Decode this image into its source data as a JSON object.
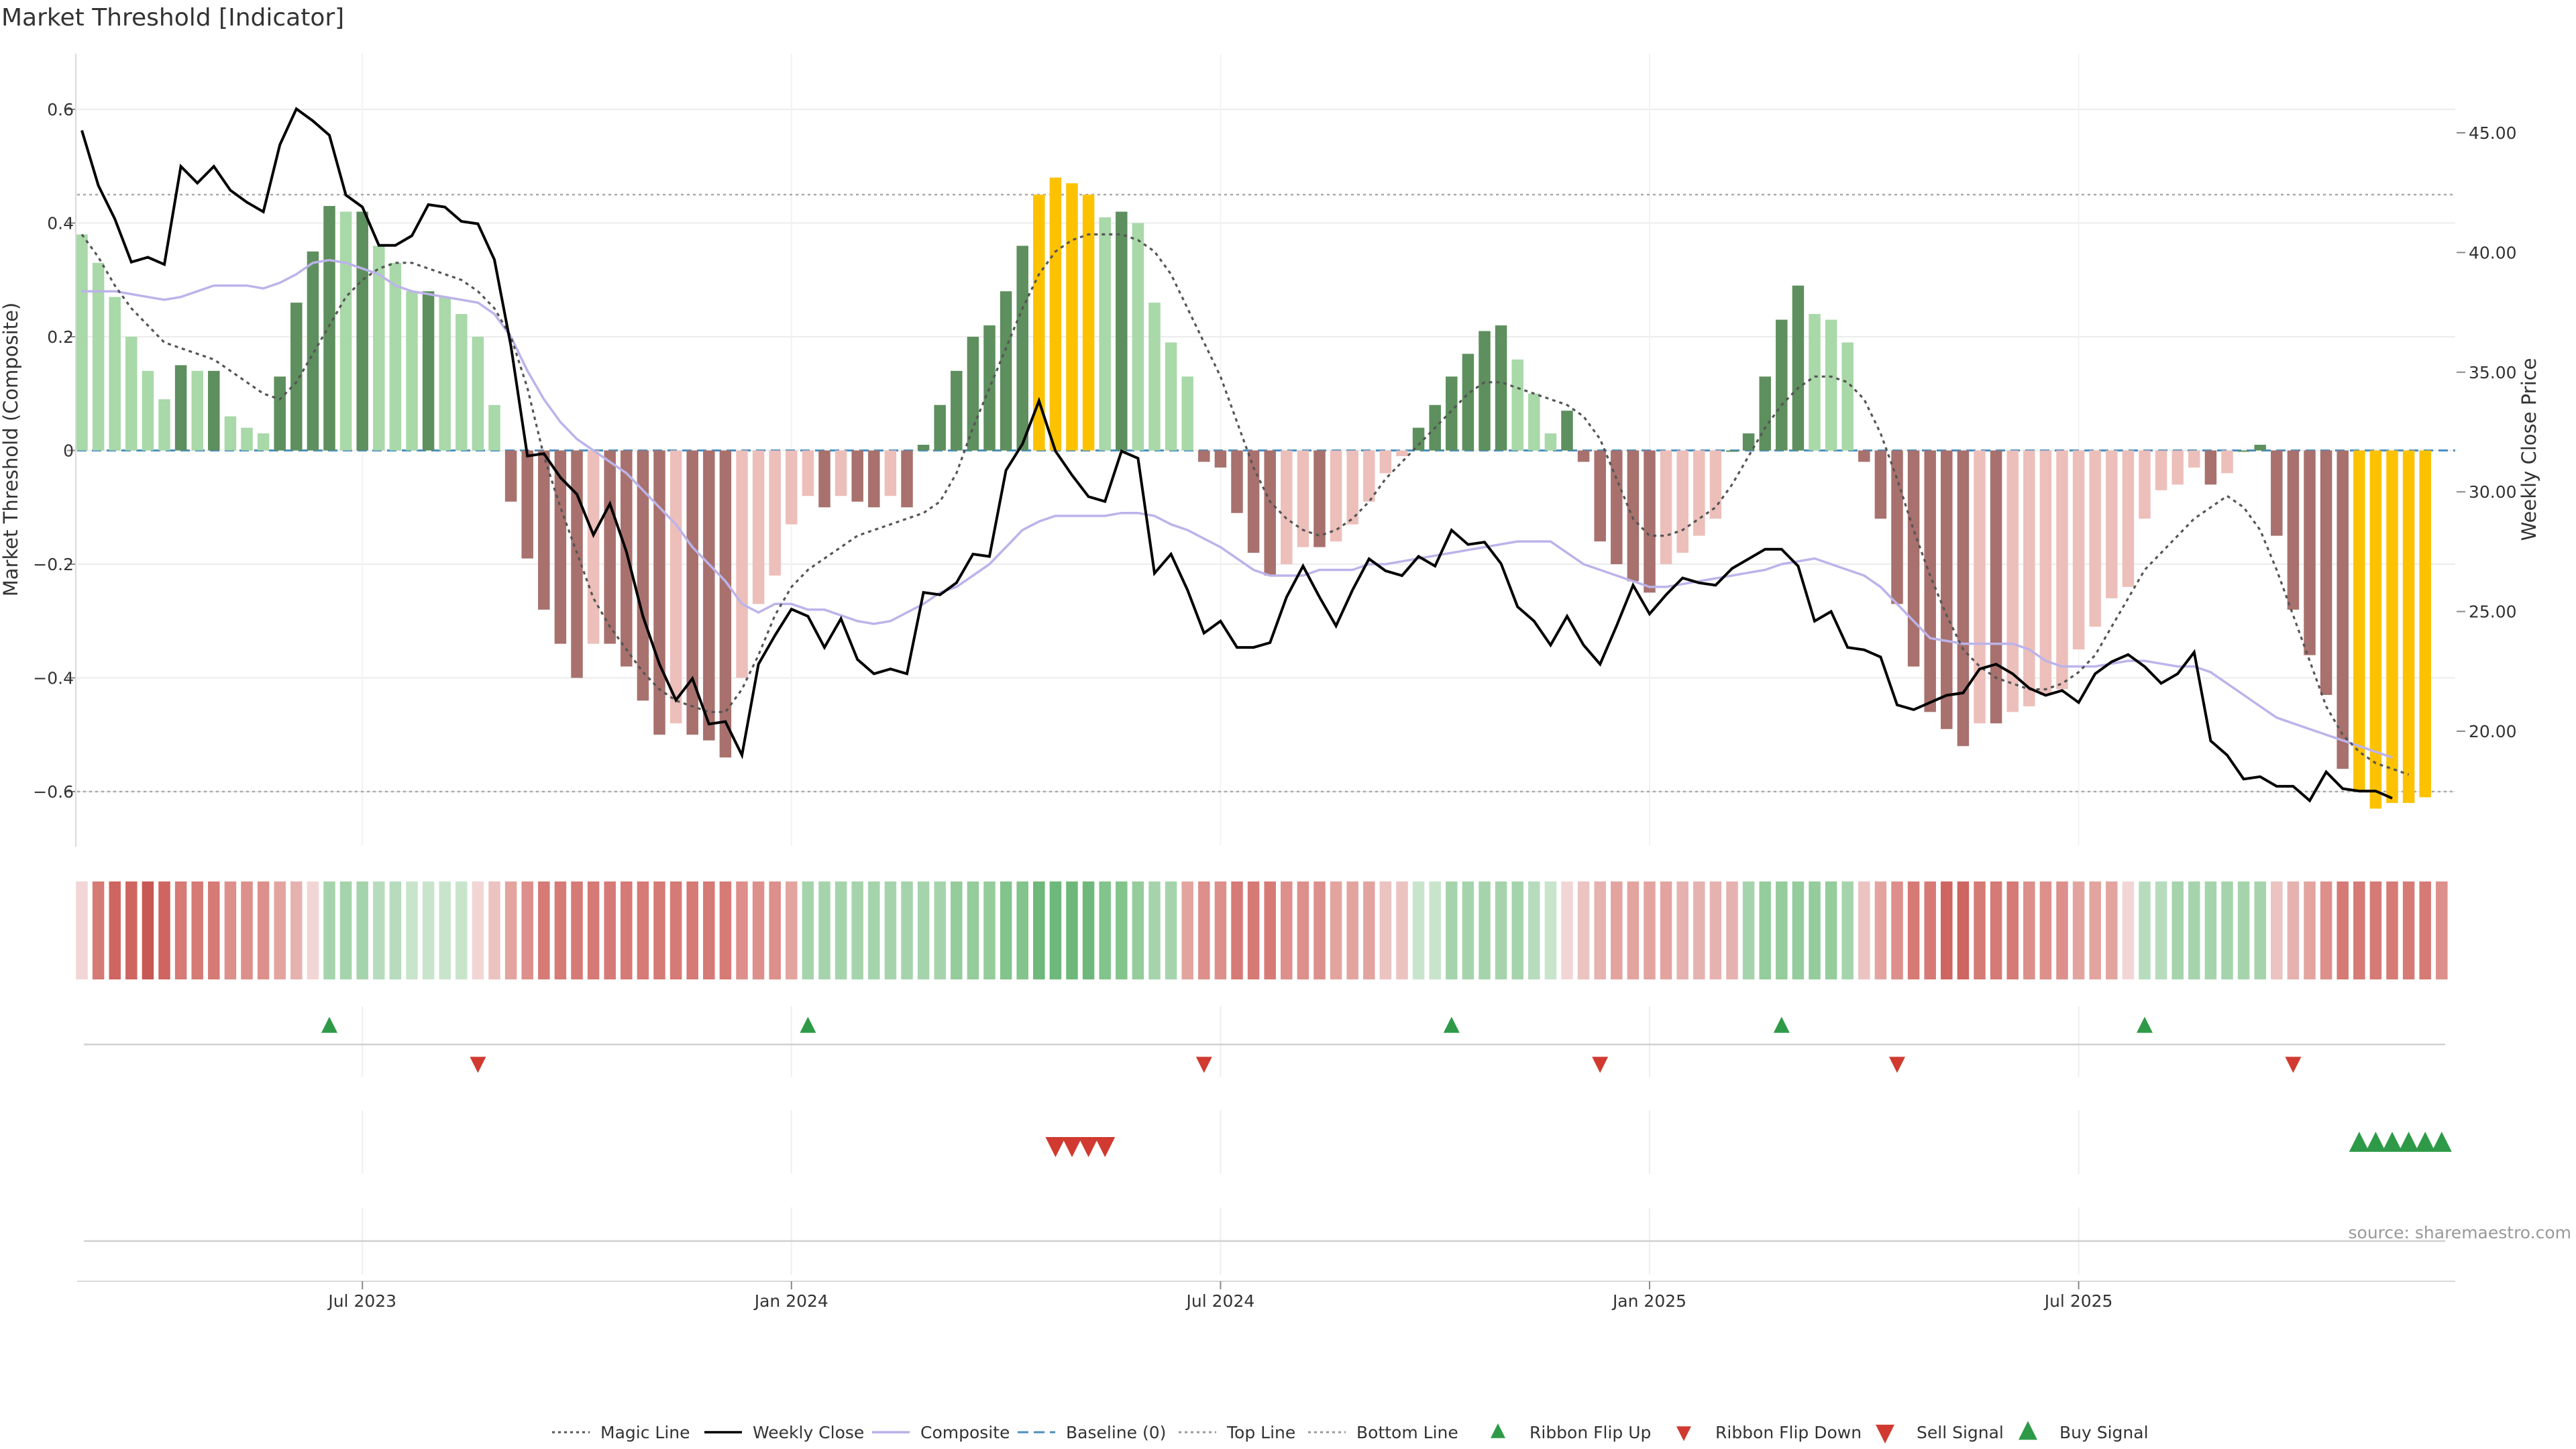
{
  "chart_data": {
    "type": "bar",
    "title": "Market Threshold [Indicator]",
    "source": "source: sharemaestro.com",
    "x_tick_labels": [
      "Jul 2023",
      "Jan 2024",
      "Jul 2024",
      "Jan 2025",
      "Jul 2025"
    ],
    "x_tick_weeks": [
      17,
      43,
      69,
      95,
      121
    ],
    "left_axis": {
      "label": "Market Threshold (Composite)",
      "ylim": [
        -0.7,
        0.7
      ],
      "ticks": [
        0.6,
        0.4,
        0.2,
        0,
        -0.2,
        -0.4,
        -0.6
      ],
      "tick_labels": [
        "0.6",
        "0.4",
        "0.2",
        "0",
        "−0.2",
        "−0.4",
        "−0.6"
      ]
    },
    "right_axis": {
      "label": "Weekly Close Price",
      "ylim": [
        13.9,
        48.2
      ],
      "ticks": [
        45,
        40,
        35,
        30,
        25,
        20
      ],
      "tick_labels": [
        "45.00",
        "40.00",
        "35.00",
        "30.00",
        "25.00",
        "20.00"
      ]
    },
    "top_line": 0.45,
    "bottom_line": -0.6,
    "bar_colors": {
      "strong_pos": "#5e8f5e",
      "weak_pos": "#a9d8a9",
      "strong_neg": "#a8716d",
      "weak_neg": "#edbfba",
      "extreme": "#fcc200"
    },
    "series": [
      {
        "name": "Composite Bars",
        "values": [
          0.38,
          0.33,
          0.27,
          0.2,
          0.14,
          0.09,
          0.15,
          0.14,
          0.14,
          0.06,
          0.04,
          0.03,
          0.13,
          0.26,
          0.35,
          0.43,
          0.42,
          0.42,
          0.36,
          0.33,
          0.28,
          0.28,
          0.27,
          0.24,
          0.2,
          0.08,
          -0.09,
          -0.19,
          -0.28,
          -0.34,
          -0.4,
          -0.34,
          -0.34,
          -0.38,
          -0.44,
          -0.5,
          -0.48,
          -0.5,
          -0.51,
          -0.54,
          -0.4,
          -0.27,
          -0.22,
          -0.13,
          -0.08,
          -0.1,
          -0.08,
          -0.09,
          -0.1,
          -0.08,
          -0.1,
          0.01,
          0.08,
          0.14,
          0.2,
          0.22,
          0.28,
          0.36,
          0.45,
          0.48,
          0.47,
          0.45,
          0.41,
          0.42,
          0.4,
          0.26,
          0.19,
          0.13,
          -0.02,
          -0.03,
          -0.11,
          -0.18,
          -0.22,
          -0.2,
          -0.17,
          -0.17,
          -0.16,
          -0.13,
          -0.09,
          -0.04,
          -0.01,
          0.04,
          0.08,
          0.13,
          0.17,
          0.21,
          0.22,
          0.16,
          0.1,
          0.03,
          0.07,
          -0.02,
          -0.16,
          -0.2,
          -0.23,
          -0.25,
          -0.2,
          -0.18,
          -0.15,
          -0.12,
          0.0,
          0.03,
          0.13,
          0.23,
          0.29,
          0.24,
          0.23,
          0.19,
          -0.02,
          -0.12,
          -0.27,
          -0.38,
          -0.46,
          -0.49,
          -0.52,
          -0.48,
          -0.48,
          -0.46,
          -0.45,
          -0.43,
          -0.42,
          -0.35,
          -0.31,
          -0.26,
          -0.24,
          -0.12,
          -0.07,
          -0.06,
          -0.03,
          -0.06,
          -0.04,
          0.0,
          0.01,
          -0.15,
          -0.28,
          -0.36,
          -0.43,
          -0.56,
          -0.6,
          -0.63,
          -0.62,
          -0.62,
          -0.61
        ]
      },
      {
        "name": "Weekly Close",
        "values": [
          45.1,
          42.8,
          41.4,
          39.6,
          39.8,
          39.5,
          43.6,
          42.9,
          43.6,
          42.6,
          42.1,
          41.7,
          44.5,
          46.0,
          45.5,
          44.9,
          42.4,
          41.9,
          40.3,
          40.3,
          40.7,
          42.0,
          41.9,
          41.3,
          41.2,
          39.7,
          36.1,
          31.5,
          31.6,
          30.6,
          29.9,
          28.2,
          29.5,
          27.5,
          24.8,
          22.8,
          21.3,
          22.2,
          20.3,
          20.4,
          19.0,
          22.8,
          24.0,
          25.1,
          24.8,
          23.5,
          24.7,
          23.0,
          22.4,
          22.6,
          22.4,
          25.8,
          25.7,
          26.2,
          27.4,
          27.3,
          30.9,
          32.0,
          33.8,
          31.7,
          30.7,
          29.8,
          29.6,
          31.7,
          31.4,
          26.6,
          27.4,
          25.9,
          24.1,
          24.6,
          23.5,
          23.5,
          23.7,
          25.6,
          26.9,
          25.6,
          24.4,
          25.9,
          27.2,
          26.7,
          26.5,
          27.3,
          26.9,
          28.4,
          27.8,
          27.9,
          27.0,
          25.2,
          24.6,
          23.6,
          24.8,
          23.6,
          22.8,
          24.4,
          26.1,
          24.9,
          25.7,
          26.4,
          26.2,
          26.1,
          26.8,
          27.2,
          27.6,
          27.6,
          26.9,
          24.6,
          25.0,
          23.5,
          23.4,
          23.1,
          21.1,
          20.9,
          21.2,
          21.5,
          21.6,
          22.6,
          22.8,
          22.4,
          21.8,
          21.5,
          21.7,
          21.2,
          22.4,
          22.9,
          23.2,
          22.7,
          22.0,
          22.4,
          23.3,
          19.6,
          19.0,
          18.0,
          18.1,
          17.7,
          17.7,
          17.1,
          18.3,
          17.6,
          17.5,
          17.5,
          17.2
        ]
      },
      {
        "name": "Composite",
        "values": [
          0.28,
          0.28,
          0.28,
          0.275,
          0.27,
          0.265,
          0.27,
          0.28,
          0.29,
          0.29,
          0.29,
          0.285,
          0.295,
          0.31,
          0.33,
          0.335,
          0.33,
          0.32,
          0.31,
          0.29,
          0.28,
          0.275,
          0.27,
          0.265,
          0.26,
          0.24,
          0.2,
          0.14,
          0.09,
          0.05,
          0.02,
          0.0,
          -0.02,
          -0.04,
          -0.07,
          -0.1,
          -0.13,
          -0.17,
          -0.2,
          -0.23,
          -0.27,
          -0.285,
          -0.27,
          -0.27,
          -0.28,
          -0.28,
          -0.29,
          -0.3,
          -0.305,
          -0.3,
          -0.285,
          -0.27,
          -0.25,
          -0.24,
          -0.22,
          -0.2,
          -0.17,
          -0.14,
          -0.125,
          -0.115,
          -0.115,
          -0.115,
          -0.115,
          -0.11,
          -0.11,
          -0.115,
          -0.13,
          -0.14,
          -0.155,
          -0.17,
          -0.19,
          -0.21,
          -0.22,
          -0.22,
          -0.22,
          -0.21,
          -0.21,
          -0.21,
          -0.2,
          -0.2,
          -0.195,
          -0.19,
          -0.185,
          -0.18,
          -0.175,
          -0.17,
          -0.165,
          -0.16,
          -0.16,
          -0.16,
          -0.18,
          -0.2,
          -0.21,
          -0.22,
          -0.23,
          -0.24,
          -0.24,
          -0.235,
          -0.23,
          -0.225,
          -0.22,
          -0.215,
          -0.21,
          -0.2,
          -0.195,
          -0.19,
          -0.2,
          -0.21,
          -0.22,
          -0.24,
          -0.27,
          -0.3,
          -0.33,
          -0.335,
          -0.34,
          -0.34,
          -0.34,
          -0.34,
          -0.35,
          -0.37,
          -0.38,
          -0.38,
          -0.38,
          -0.375,
          -0.37,
          -0.37,
          -0.375,
          -0.38,
          -0.38,
          -0.39,
          -0.41,
          -0.43,
          -0.45,
          -0.47,
          -0.48,
          -0.49,
          -0.5,
          -0.51,
          -0.52,
          -0.53,
          -0.54
        ]
      },
      {
        "name": "Magic Line",
        "values": [
          0.38,
          0.34,
          0.29,
          0.25,
          0.22,
          0.19,
          0.18,
          0.17,
          0.16,
          0.14,
          0.12,
          0.1,
          0.09,
          0.12,
          0.17,
          0.22,
          0.27,
          0.3,
          0.32,
          0.33,
          0.33,
          0.32,
          0.31,
          0.3,
          0.28,
          0.25,
          0.2,
          0.11,
          -0.01,
          -0.1,
          -0.18,
          -0.26,
          -0.31,
          -0.35,
          -0.39,
          -0.42,
          -0.44,
          -0.45,
          -0.46,
          -0.46,
          -0.42,
          -0.36,
          -0.29,
          -0.24,
          -0.21,
          -0.19,
          -0.17,
          -0.15,
          -0.14,
          -0.13,
          -0.12,
          -0.11,
          -0.09,
          -0.04,
          0.04,
          0.11,
          0.18,
          0.25,
          0.31,
          0.35,
          0.37,
          0.38,
          0.38,
          0.38,
          0.37,
          0.35,
          0.31,
          0.25,
          0.19,
          0.13,
          0.05,
          -0.03,
          -0.09,
          -0.12,
          -0.14,
          -0.15,
          -0.14,
          -0.12,
          -0.09,
          -0.05,
          -0.02,
          0.01,
          0.04,
          0.07,
          0.1,
          0.12,
          0.12,
          0.11,
          0.1,
          0.09,
          0.08,
          0.06,
          0.02,
          -0.05,
          -0.12,
          -0.15,
          -0.15,
          -0.14,
          -0.12,
          -0.1,
          -0.06,
          -0.01,
          0.04,
          0.08,
          0.11,
          0.13,
          0.13,
          0.12,
          0.09,
          0.03,
          -0.05,
          -0.14,
          -0.22,
          -0.29,
          -0.35,
          -0.38,
          -0.4,
          -0.41,
          -0.42,
          -0.42,
          -0.41,
          -0.39,
          -0.36,
          -0.31,
          -0.26,
          -0.21,
          -0.18,
          -0.15,
          -0.12,
          -0.1,
          -0.08,
          -0.1,
          -0.14,
          -0.21,
          -0.29,
          -0.37,
          -0.45,
          -0.5,
          -0.53,
          -0.55,
          -0.56,
          -0.57
        ]
      }
    ],
    "ribbon": [
      "#f2d6d5",
      "#d67a76",
      "#cf6560",
      "#cf6560",
      "#c85853",
      "#cf6560",
      "#d67a76",
      "#d67a76",
      "#d67a76",
      "#dd8f8b",
      "#dd8f8b",
      "#dd8f8b",
      "#e3a4a0",
      "#e6b2b0",
      "#f2d6d5",
      "#a5d4ac",
      "#a5d4ac",
      "#a5d4ac",
      "#b7dcbd",
      "#b7dcbd",
      "#c8e5cc",
      "#c8e5cc",
      "#c8e5cc",
      "#c8e5cc",
      "#f2d6d5",
      "#ebc3c1",
      "#e3a4a0",
      "#dd8f8b",
      "#d67a76",
      "#d67a76",
      "#d67a76",
      "#d67a76",
      "#d67a76",
      "#d67a76",
      "#d67a76",
      "#d67a76",
      "#d67a76",
      "#d67a76",
      "#d67a76",
      "#d67a76",
      "#dd8f8b",
      "#dd8f8b",
      "#dd8f8b",
      "#e3a4a0",
      "#a5d4ac",
      "#a5d4ac",
      "#a5d4ac",
      "#a5d4ac",
      "#a5d4ac",
      "#a5d4ac",
      "#a5d4ac",
      "#a5d4ac",
      "#a5d4ac",
      "#94cc9c",
      "#94cc9c",
      "#94cc9c",
      "#83c48c",
      "#83c48c",
      "#6db87a",
      "#6db87a",
      "#6db87a",
      "#6db87a",
      "#83c48c",
      "#83c48c",
      "#94cc9c",
      "#a5d4ac",
      "#a5d4ac",
      "#e3a4a0",
      "#dd8f8b",
      "#dd8f8b",
      "#d67a76",
      "#d67a76",
      "#d67a76",
      "#dd8f8b",
      "#dd8f8b",
      "#dd8f8b",
      "#e3a4a0",
      "#e3a4a0",
      "#e3a4a0",
      "#ebc3c1",
      "#ebc3c1",
      "#c8e5cc",
      "#c8e5cc",
      "#a5d4ac",
      "#a5d4ac",
      "#a5d4ac",
      "#a5d4ac",
      "#a5d4ac",
      "#b7dcbd",
      "#c8e5cc",
      "#f2d6d5",
      "#ebc3c1",
      "#e6b2b0",
      "#e3a4a0",
      "#e3a4a0",
      "#e3a4a0",
      "#e3a4a0",
      "#e6b2b0",
      "#e6b2b0",
      "#e6b2b0",
      "#e6b2b0",
      "#a5d4ac",
      "#94cc9c",
      "#94cc9c",
      "#94cc9c",
      "#94cc9c",
      "#94cc9c",
      "#a5d4ac",
      "#ebc3c1",
      "#e3a4a0",
      "#dd8f8b",
      "#d67a76",
      "#d67a76",
      "#cf6560",
      "#cf6560",
      "#d67a76",
      "#d67a76",
      "#d67a76",
      "#dd8f8b",
      "#dd8f8b",
      "#dd8f8b",
      "#e3a4a0",
      "#e3a4a0",
      "#e3a4a0",
      "#f2d6d5",
      "#b7dcbd",
      "#b7dcbd",
      "#a5d4ac",
      "#a5d4ac",
      "#a5d4ac",
      "#a5d4ac",
      "#a5d4ac",
      "#a5d4ac",
      "#ebc3c1",
      "#e6b2b0",
      "#e3a4a0",
      "#dd8f8b",
      "#d67a76",
      "#d67a76",
      "#d67a76",
      "#d67a76",
      "#d67a76",
      "#d67a76",
      "#dd8f8b"
    ],
    "ribbon_flip_up_weeks": [
      15,
      44,
      83,
      103,
      125
    ],
    "ribbon_flip_down_weeks": [
      24,
      68,
      92,
      110,
      134
    ],
    "sell_signal_weeks": [
      59,
      60,
      61,
      62
    ],
    "buy_signal_weeks": [
      138,
      139,
      140,
      141,
      142,
      143
    ]
  },
  "legend": [
    {
      "label": "Magic Line",
      "key": "dotted",
      "color": "#555555"
    },
    {
      "label": "Weekly Close",
      "key": "solid",
      "color": "#000000"
    },
    {
      "label": "Composite",
      "key": "solid",
      "color": "#b8b0e8"
    },
    {
      "label": "Baseline (0)",
      "key": "dashed",
      "color": "#4a8fbf"
    },
    {
      "label": "Top Line",
      "key": "dotted",
      "color": "#999999"
    },
    {
      "label": "Bottom Line",
      "key": "dotted",
      "color": "#999999"
    },
    {
      "label": "Ribbon Flip Up",
      "key": "tri-up",
      "color": "#2e9a48"
    },
    {
      "label": "Ribbon Flip Down",
      "key": "tri-down",
      "color": "#d03a30"
    },
    {
      "label": "Sell Signal",
      "key": "tri-down-big",
      "color": "#d03a30"
    },
    {
      "label": "Buy Signal",
      "key": "tri-up-big",
      "color": "#2e9a48"
    }
  ]
}
